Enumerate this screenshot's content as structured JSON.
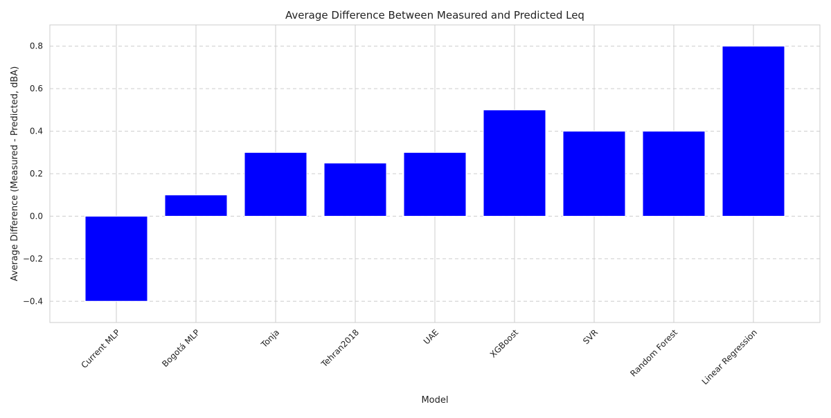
{
  "chart_data": {
    "type": "bar",
    "title": "Average Difference Between Measured and Predicted Leq",
    "xlabel": "Model",
    "ylabel": "Average Difference (Measured - Predicted, dBA)",
    "categories": [
      "Current MLP",
      "Bogotá MLP",
      "Tonja",
      "Tehran2018",
      "UAE",
      "XGBoost",
      "SVR",
      "Random Forest",
      "Linear Regression"
    ],
    "values": [
      -0.4,
      0.1,
      0.3,
      0.25,
      0.3,
      0.5,
      0.4,
      0.4,
      0.8
    ],
    "ylim": [
      -0.5,
      0.9
    ],
    "yticks": [
      -0.4,
      -0.2,
      0.0,
      0.2,
      0.4,
      0.6,
      0.8
    ],
    "ytick_labels": [
      "−0.4",
      "−0.2",
      "0.0",
      "0.2",
      "0.4",
      "0.6",
      "0.8"
    ],
    "bar_color": "#0000ff",
    "grid": true,
    "grid_color": "#cccccc",
    "frame_color": "#cccccc"
  }
}
